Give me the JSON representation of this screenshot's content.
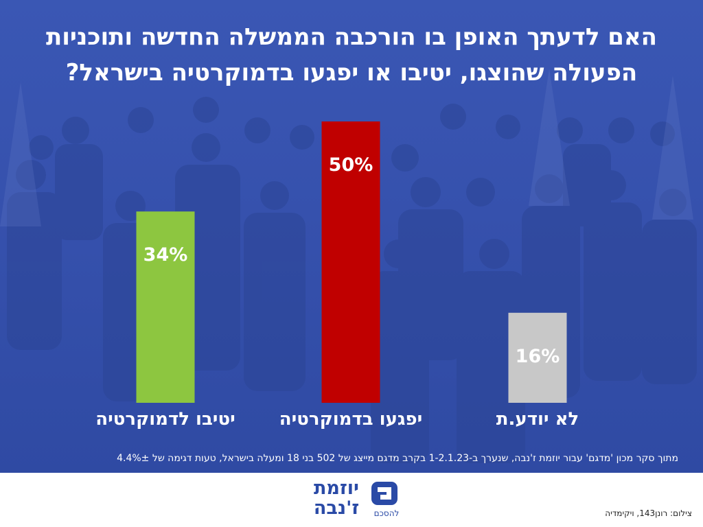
{
  "title_line1": "האם לדעתך האופן בו הורכבה הממשלה החדשה ותוכניות",
  "title_line2": "הפעולה שהוצגו, יטיבו או יפגעו בדמוקרטיה בישראל?",
  "chart_data": {
    "type": "bar",
    "categories": [
      "יטיבו לדמוקרטיה",
      "יפגעו בדמוקרטיה",
      "לא יודע.ת"
    ],
    "values": [
      34,
      50,
      16
    ],
    "value_labels": [
      "34%",
      "50%",
      "16%"
    ],
    "colors": [
      "#8dc640",
      "#c00000",
      "#c8c8c8"
    ],
    "ylim": [
      0,
      50
    ],
    "grid": false
  },
  "source_note": "מתוך סקר מכון 'מדגם' עבור יוזמת ז'נבה, שנערך ב-1-2.1.23 בקרב מדגם מייצג של 502 בני 18 ומעלה בישראל, טעות דגימה של 4.4%±",
  "logo": {
    "name_line1": "יוזמת",
    "name_line2": "ז'נבה",
    "slogan": "להסכם"
  },
  "photo_credit": "צילום: רונן143, ויקימדיה",
  "colors": {
    "background_blue": "#3651ad",
    "text_white": "#ffffff",
    "logo_blue": "#2a4aa6"
  }
}
